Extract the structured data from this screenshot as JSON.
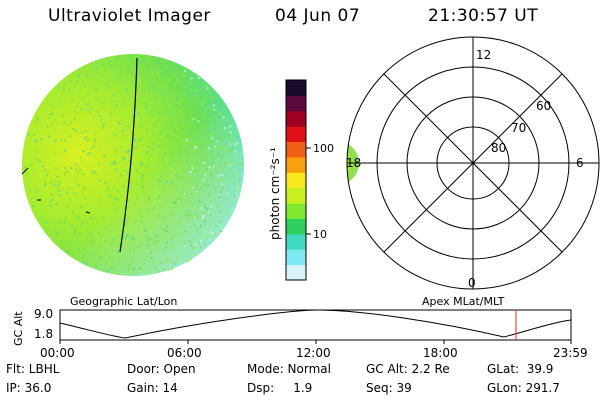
{
  "header": {
    "instrument": "Ultraviolet Imager",
    "date": "04 Jun 07",
    "time": "21:30:57 UT"
  },
  "colorbar": {
    "unit_label": "photon cm⁻²s⁻¹",
    "tick_labels": [
      "100",
      "10"
    ],
    "colors": [
      "#1a0a2e",
      "#5c0a3e",
      "#a00020",
      "#e01018",
      "#f06018",
      "#f8a010",
      "#f8e820",
      "#c8f020",
      "#80e830",
      "#30d060",
      "#40d8c0",
      "#80e8f0",
      "#d8f0f8"
    ]
  },
  "polar": {
    "mlat_labels": [
      "60",
      "70",
      "80"
    ],
    "mlt_labels": {
      "top": "12",
      "right": "6",
      "bottom": "0",
      "left": "18"
    }
  },
  "timeline": {
    "left_label": "Geographic Lat/Lon",
    "right_label": "Apex MLat/MLT",
    "axis_label": "GC Alt",
    "y_ticks": [
      "9.0",
      "1.8"
    ],
    "x_ticks": [
      "00:00",
      "06:00",
      "12:00",
      "18:00",
      "23:59"
    ],
    "marker_color": "#e03020"
  },
  "info": {
    "filter": "Flt: LBHL",
    "ip": "IP: 36.0",
    "door": "Door: Open",
    "gain": "Gain: 14",
    "mode": "Mode: Normal",
    "dsp": "Dsp:     1.9",
    "gc_alt": "GC Alt: 2.2 Re",
    "seq": "Seq: 39",
    "glat": "GLat:  39.9",
    "glon": "GLon: 291.7"
  }
}
